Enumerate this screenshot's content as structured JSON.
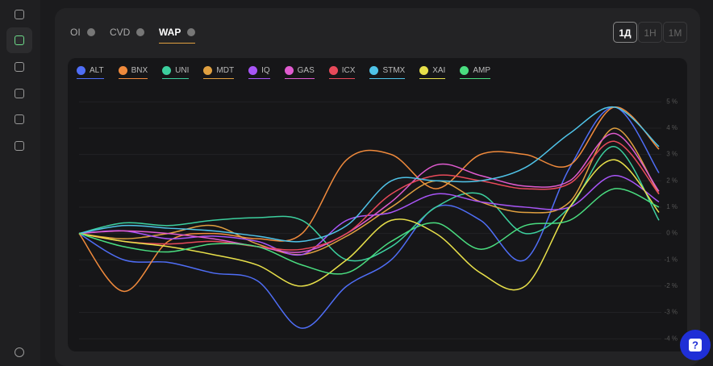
{
  "tabs": [
    "OI",
    "CVD",
    "WAP"
  ],
  "timeframes": [
    "1Д",
    "1H",
    "1M"
  ],
  "chart_data": {
    "type": "line",
    "categories": [
      null,
      null,
      null,
      null,
      null,
      null,
      null,
      null,
      null,
      null,
      null,
      null,
      null,
      null
    ],
    "series": [
      {
        "name": "ALT",
        "color": "#4f6ef7",
        "values": [
          0,
          -1,
          -1.1,
          -1.5,
          -1.8,
          -3.6,
          -2,
          -1,
          1,
          0.5,
          -1,
          2.5,
          4.8,
          2.3
        ]
      },
      {
        "name": "BNX",
        "color": "#f08a3c",
        "values": [
          0,
          -2.2,
          -0.3,
          0,
          -0.2,
          0,
          2.8,
          3,
          1.7,
          3,
          3,
          2.6,
          4.8,
          3.2
        ]
      },
      {
        "name": "UNI",
        "color": "#3ccf9e",
        "values": [
          0,
          0.4,
          0.3,
          0.5,
          0.6,
          0.5,
          -1,
          -0.5,
          1,
          1.5,
          0,
          1,
          3.3,
          0.5
        ]
      },
      {
        "name": "MDT",
        "color": "#e0a040",
        "values": [
          0,
          -0.2,
          0,
          0.3,
          -0.4,
          -0.8,
          -0.1,
          1,
          2,
          1.2,
          0.8,
          1.2,
          4,
          1.5
        ]
      },
      {
        "name": "IQ",
        "color": "#a855f7",
        "values": [
          0,
          0.1,
          -0.2,
          -0.1,
          -0.3,
          -0.8,
          0.5,
          0.8,
          1.5,
          1.2,
          1,
          1,
          2.2,
          1.2
        ]
      },
      {
        "name": "GAS",
        "color": "#e05bd0",
        "values": [
          0,
          0.1,
          0,
          -0.2,
          -0.5,
          -0.7,
          0,
          1.2,
          2.6,
          2.2,
          1.8,
          2,
          3.8,
          1.6
        ]
      },
      {
        "name": "ICX",
        "color": "#e84a5a",
        "values": [
          0,
          -0.3,
          -0.4,
          -0.3,
          -0.5,
          -0.6,
          0,
          1.5,
          2.2,
          2,
          1.7,
          1.9,
          3.5,
          1.5
        ]
      },
      {
        "name": "STMX",
        "color": "#4fc3e8",
        "values": [
          0,
          0.3,
          0.2,
          0.1,
          -0.1,
          -0.3,
          0.3,
          2,
          2,
          2,
          2.5,
          3.8,
          4.8,
          3.3
        ]
      },
      {
        "name": "XAI",
        "color": "#e8e04a",
        "values": [
          0,
          -0.3,
          -0.5,
          -0.8,
          -1.2,
          -2,
          -1,
          0.5,
          0,
          -1.5,
          -2,
          1,
          2.8,
          0.8
        ]
      },
      {
        "name": "AMP",
        "color": "#4ade80",
        "values": [
          0,
          -0.5,
          -0.7,
          -0.4,
          -0.5,
          -1.2,
          -1.5,
          -0.3,
          0.4,
          -0.6,
          0.3,
          0.5,
          1.7,
          1
        ]
      }
    ],
    "ylim": [
      -4.3,
      5.5
    ],
    "yticks": [
      {
        "value": 5,
        "label": "5 %"
      },
      {
        "value": 4,
        "label": "4 %"
      },
      {
        "value": 3,
        "label": "3 %"
      },
      {
        "value": 2,
        "label": "2 %"
      },
      {
        "value": 1,
        "label": "1 %"
      },
      {
        "value": 0,
        "label": "0 %"
      },
      {
        "value": -1,
        "label": "-1 %"
      },
      {
        "value": -2,
        "label": "-2 %"
      },
      {
        "value": -3,
        "label": "-3 %"
      },
      {
        "value": -4,
        "label": "-4 %"
      }
    ]
  }
}
